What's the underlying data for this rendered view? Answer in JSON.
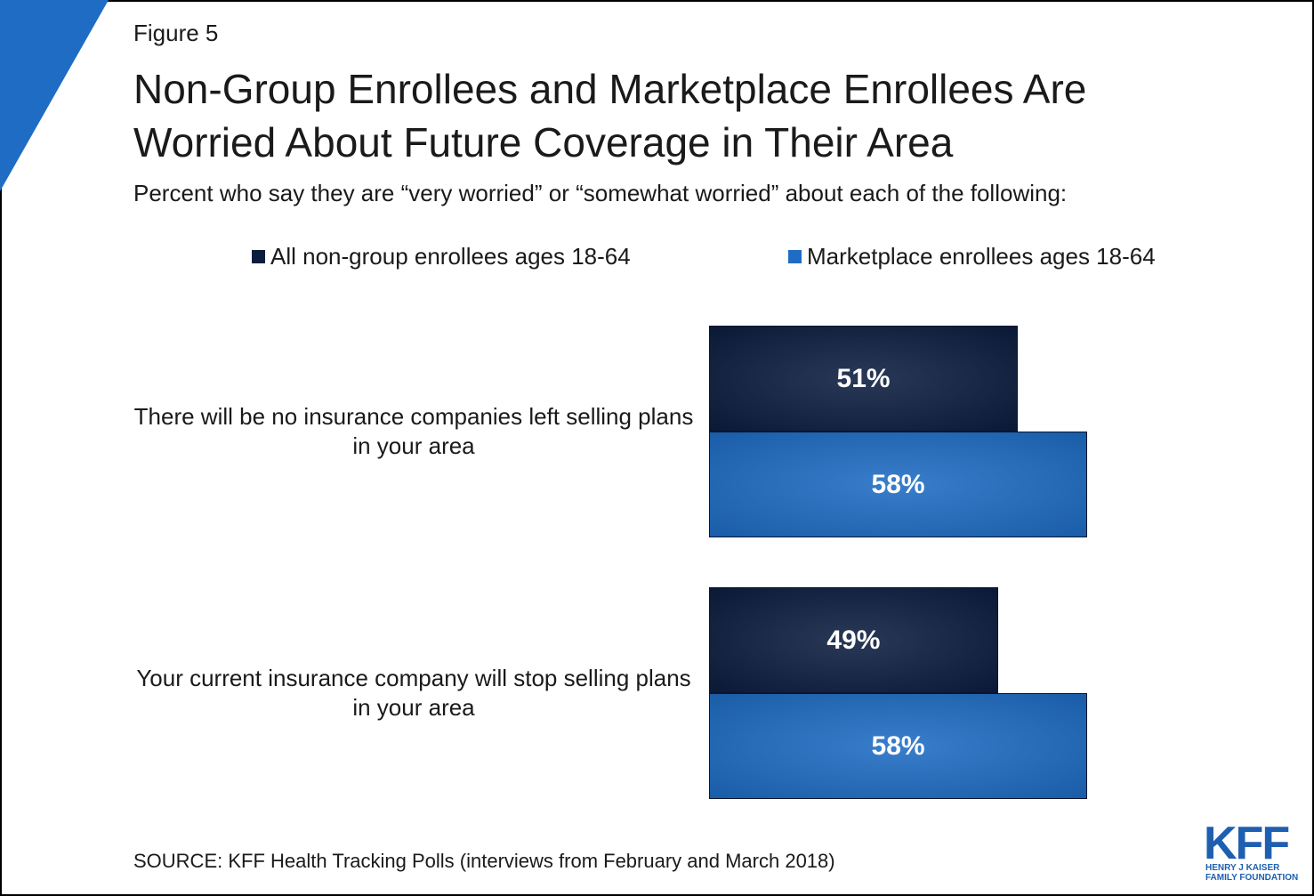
{
  "chart_data": {
    "type": "bar",
    "orientation": "horizontal",
    "figure_label": "Figure 5",
    "title": "Non-Group Enrollees and Marketplace Enrollees Are Worried About Future Coverage in Their Area",
    "subtitle": "Percent who say they are “very worried” or “somewhat worried” about each of the following:",
    "categories": [
      "There will be no insurance companies left selling plans in your area",
      "Your current insurance company will stop selling plans in your area"
    ],
    "series": [
      {
        "name": "All non-group enrollees ages 18-64",
        "color": "#0b1d3f",
        "values": [
          51,
          49
        ],
        "value_labels": [
          "51%",
          "49%"
        ]
      },
      {
        "name": "Marketplace enrollees ages 18-64",
        "color": "#1e6cc4",
        "values": [
          58,
          58
        ],
        "value_labels": [
          "58%",
          "58%"
        ]
      }
    ],
    "source": "SOURCE: KFF Health Tracking Polls (interviews from February and March 2018)",
    "logo": {
      "name": "KFF",
      "subtitle": "HENRY J KAISER FAMILY FOUNDATION"
    }
  }
}
